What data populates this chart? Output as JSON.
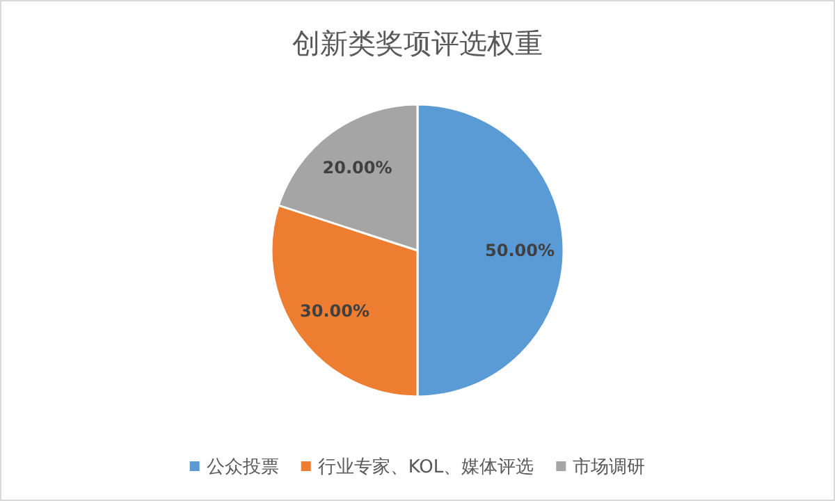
{
  "chart_data": {
    "type": "pie",
    "title": "创新类奖项评选权重",
    "categories": [
      "公众投票",
      "行业专家、KOL、媒体评选",
      "市场调研"
    ],
    "values": [
      50,
      30,
      20
    ],
    "colors": [
      "#5b9bd5",
      "#ed7d31",
      "#a5a5a5"
    ],
    "value_labels": [
      "50.00%",
      "30.00%",
      "20.00%"
    ],
    "legend": "bottom"
  }
}
